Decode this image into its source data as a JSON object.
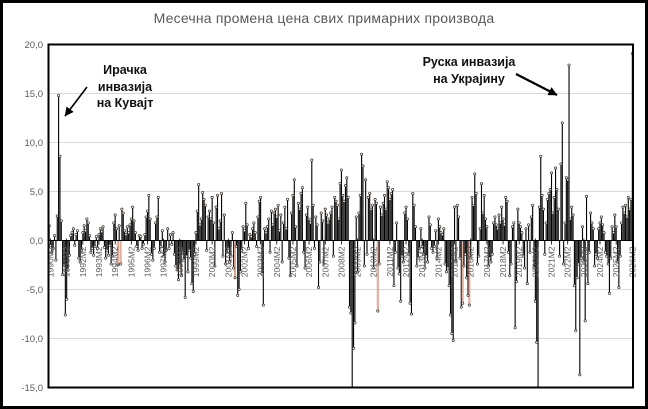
{
  "title": "Месечна промена цена свих примарних производа",
  "annotations": {
    "kuwait": {
      "lines": [
        "Ирачка",
        "инвазија",
        "на Кувајт"
      ]
    },
    "ukraine": {
      "lines": [
        "Руска инвазија",
        "на Украјину"
      ]
    }
  },
  "colors": {
    "bar": "#000000",
    "hollow_bar_stroke": "#d99c87",
    "marker_fill": "#ffffff",
    "marker_stroke": "#3a3028",
    "grid": "#d9d9d9",
    "axis": "#000000",
    "axis_text": "#595959",
    "title_text": "#595959",
    "annotation_text": "#111111",
    "border": "#000000"
  },
  "chart_data": {
    "type": "bar",
    "title": "Месечна промена цена свих примарних производа",
    "x_first": "1990M1",
    "x_last": "2026M2",
    "x_tick_start_index": 1,
    "x_tick_step": 12,
    "x_tick_labels": [
      "1990M2",
      "1991M2",
      "1992M2",
      "1993M2",
      "1994M2",
      "1995M2",
      "1996M2",
      "1997M2",
      "1998M2",
      "1999M2",
      "2000M2",
      "2001M2",
      "2002M2",
      "2003M2",
      "2004M2",
      "2005M2",
      "2006M2",
      "2007M2",
      "2008M2",
      "2009M2",
      "2010M2",
      "2011M2",
      "2012M2",
      "2013M2",
      "2014M2",
      "2015M2",
      "2016M2",
      "2017M2",
      "2018M2",
      "2019M2",
      "2020M2",
      "2021M2",
      "2022M2",
      "2023M2",
      "2024M2",
      "2025M2",
      "2026M2"
    ],
    "y_tick_labels": [
      "20,0",
      "15,0",
      "10,0",
      "5,0",
      "0,0",
      "-5,0",
      "-10,0",
      "-15,0"
    ],
    "y_tick_values": [
      20,
      15,
      10,
      5,
      0,
      -5,
      -10,
      -15
    ],
    "ylim": [
      -15,
      20
    ],
    "grid": true,
    "series": [
      {
        "name": "Месечна промена цена свих примарних производа",
        "start": "1990M1",
        "values": [
          1.5,
          -0.5,
          -1.2,
          -0.8,
          0.5,
          -2.0,
          2.5,
          14.8,
          8.6,
          2.0,
          -3.5,
          -2.5,
          -7.6,
          -6.0,
          -3.0,
          -1.5,
          0.5,
          0.8,
          1.2,
          -0.5,
          0.6,
          1.0,
          -1.8,
          -2.2,
          -1.0,
          0.8,
          1.5,
          1.0,
          2.2,
          1.8,
          0.5,
          -1.2,
          -0.8,
          -1.5,
          -0.6,
          0.4,
          -0.8,
          0.6,
          1.2,
          0.9,
          1.4,
          -0.7,
          -1.8,
          -1.0,
          -1.5,
          -0.5,
          -2.4,
          -1.6,
          1.8,
          2.6,
          1.2,
          -2.5,
          1.5,
          -2.4,
          3.2,
          2.8,
          1.0,
          0.6,
          1.4,
          0.8,
          1.6,
          2.2,
          3.4,
          2.0,
          0.8,
          -0.6,
          -1.0,
          0.5,
          0.4,
          -0.8,
          -0.4,
          0.6,
          2.4,
          3.0,
          4.6,
          2.2,
          -1.4,
          -2.0,
          -0.8,
          1.8,
          2.4,
          4.4,
          -1.2,
          -0.6,
          1.0,
          -1.6,
          -2.2,
          -1.0,
          1.2,
          -0.8,
          0.6,
          -0.4,
          0.8,
          -1.4,
          -2.6,
          -3.0,
          -4.0,
          -2.4,
          -3.6,
          -1.2,
          -2.0,
          -5.8,
          -1.6,
          -3.2,
          -1.0,
          -1.8,
          -4.4,
          -5.2,
          -1.4,
          0.8,
          3.0,
          5.7,
          1.6,
          2.2,
          4.9,
          4.2,
          3.6,
          -1.0,
          2.4,
          3.0,
          2.2,
          4.4,
          1.8,
          -2.6,
          3.4,
          4.6,
          1.2,
          2.0,
          4.8,
          -1.6,
          2.6,
          -2.4,
          -1.2,
          -0.8,
          -2.2,
          -1.6,
          0.8,
          -2.8,
          -3.8,
          -0.6,
          -5.6,
          -5.0,
          -3.2,
          -1.0,
          1.4,
          1.0,
          3.8,
          1.6,
          -0.8,
          0.6,
          0.4,
          1.2,
          1.8,
          0.8,
          -0.6,
          2.4,
          4.0,
          4.4,
          -3.4,
          -6.6,
          1.2,
          0.8,
          1.4,
          2.2,
          -1.2,
          3.0,
          1.6,
          2.8,
          3.2,
          2.4,
          3.6,
          1.0,
          2.6,
          -2.2,
          1.8,
          3.4,
          1.2,
          4.2,
          -1.8,
          -3.6,
          2.8,
          4.6,
          6.2,
          1.4,
          -2.6,
          3.8,
          3.2,
          4.8,
          5.4,
          -1.2,
          -2.8,
          2.6,
          3.4,
          2.2,
          1.8,
          8.2,
          3.6,
          -0.8,
          2.4,
          1.6,
          -4.8,
          -2.2,
          2.8,
          2.0,
          -2.4,
          3.2,
          2.6,
          1.8,
          2.2,
          2.8,
          3.4,
          -1.6,
          4.4,
          4.0,
          3.6,
          2.2,
          5.8,
          7.2,
          4.6,
          4.0,
          5.6,
          6.4,
          4.4,
          -6.8,
          -7.4,
          -15.6,
          -11.0,
          -8.4,
          2.4,
          -3.2,
          2.8,
          4.6,
          8.8,
          7.6,
          -2.6,
          6.2,
          -1.4,
          4.4,
          4.8,
          3.2,
          3.6,
          -2.8,
          4.2,
          3.8,
          -7.2,
          -2.4,
          3.4,
          2.6,
          3.8,
          4.6,
          3.2,
          6.0,
          5.4,
          4.2,
          4.8,
          5.2,
          -4.6,
          -1.2,
          1.8,
          -2.8,
          -3.4,
          -6.2,
          -1.6,
          -2.2,
          2.8,
          3.4,
          2.2,
          -1.4,
          -6.4,
          -7.5,
          4.8,
          3.6,
          1.4,
          -2.6,
          -1.8,
          -0.8,
          1.2,
          -0.6,
          -1.4,
          -2.8,
          -1.6,
          -2.2,
          2.4,
          1.6,
          -0.8,
          -1.2,
          -0.6,
          1.0,
          -1.8,
          2.2,
          1.4,
          0.8,
          0.6,
          1.2,
          -2.4,
          -3.2,
          -2.8,
          -4.6,
          -7.6,
          -9.5,
          -10.2,
          3.4,
          -2.2,
          3.6,
          2.4,
          -1.8,
          -6.8,
          -6.4,
          -2.6,
          -1.4,
          -3.8,
          -5.6,
          -6.6,
          -1.8,
          4.4,
          3.6,
          6.8,
          4.8,
          -2.4,
          -1.6,
          1.2,
          5.8,
          2.8,
          4.6,
          2.2,
          1.4,
          -2.6,
          -1.8,
          -2.2,
          -1.4,
          1.8,
          2.4,
          1.6,
          1.2,
          2.6,
          1.8,
          3.4,
          2.2,
          1.6,
          4.4,
          4.0,
          -1.2,
          -3.6,
          -2.4,
          1.4,
          1.8,
          -8.9,
          -4.2,
          3.2,
          1.8,
          1.4,
          0.8,
          -1.6,
          -2.8,
          1.2,
          -4.4,
          1.6,
          -1.2,
          2.4,
          3.6,
          -2.8,
          -6.2,
          -10.4,
          -15.6,
          3.4,
          8.6,
          4.6,
          3.2,
          -1.4,
          1.8,
          4.2,
          4.8,
          5.2,
          6.9,
          2.8,
          4.4,
          7.4,
          5.2,
          3.2,
          -1.6,
          7.8,
          12.0,
          -2.4,
          1.8,
          6.4,
          6.2,
          17.9,
          2.2,
          3.4,
          2.6,
          -4.6,
          -9.2,
          -3.8,
          -2.4,
          -13.7,
          -1.8,
          1.4,
          -2.2,
          -8.2,
          4.5,
          -4.4,
          -1.2,
          2.8,
          1.8,
          1.2,
          -2.6,
          -1.4,
          -1.8,
          1.2,
          1.8,
          2.4,
          1.6,
          0.8,
          -1.2,
          -1.6,
          -2.4,
          -5.4,
          -1.8,
          1.4,
          0.8,
          2.6,
          1.4,
          -2.2,
          -4.8,
          -1.6,
          1.8,
          3.4,
          2.8,
          3.6,
          2.4,
          4.4,
          3.2,
          4.2,
          19.1
        ]
      }
    ],
    "hollow_bar_indices": [
      51,
      53,
      138,
      244,
      307,
      312
    ],
    "clipped_below_min_indices": [
      225,
      363
    ]
  }
}
